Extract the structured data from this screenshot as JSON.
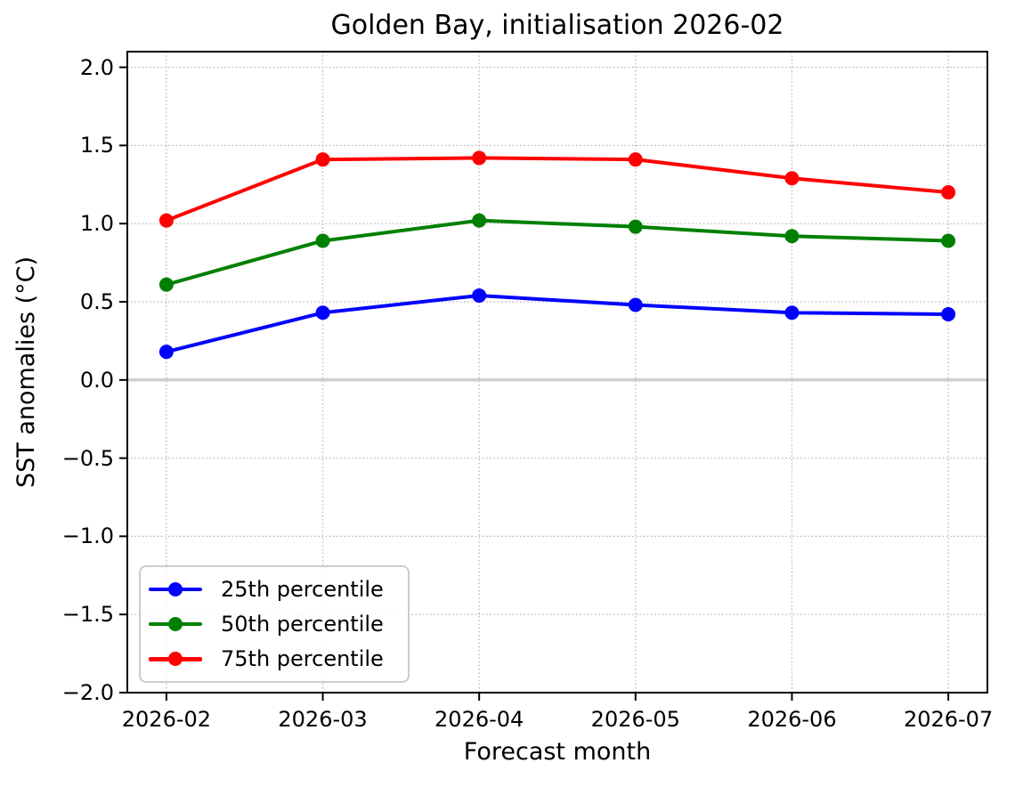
{
  "chart_data": {
    "type": "line",
    "title": "Golden Bay, initialisation 2026-02",
    "xlabel": "Forecast month",
    "ylabel": "SST anomalies (°C)",
    "categories": [
      "2026-02",
      "2026-03",
      "2026-04",
      "2026-05",
      "2026-06",
      "2026-07"
    ],
    "series": [
      {
        "name": "25th percentile",
        "color": "#0000ff",
        "values": [
          0.18,
          0.43,
          0.54,
          0.48,
          0.43,
          0.42
        ]
      },
      {
        "name": "50th percentile",
        "color": "#008000",
        "values": [
          0.61,
          0.89,
          1.02,
          0.98,
          0.92,
          0.89
        ]
      },
      {
        "name": "75th percentile",
        "color": "#ff0000",
        "values": [
          1.02,
          1.41,
          1.42,
          1.41,
          1.29,
          1.2
        ]
      }
    ],
    "ylim": [
      -2.0,
      2.1
    ],
    "x_margin": 0.25,
    "yticks": [
      2.0,
      1.5,
      1.0,
      0.5,
      0.0,
      -0.5,
      -1.0,
      -1.5,
      -2.0
    ],
    "yticklabels": [
      "2.0",
      "1.5",
      "1.0",
      "0.5",
      "0.0",
      "−0.5",
      "−1.0",
      "−1.5",
      "−2.0"
    ],
    "grid": "dotted",
    "grid_color": "#b0b0b0",
    "legend_position": "lower left",
    "zero_line": {
      "y": 0.0,
      "color": "#cfcfcf"
    },
    "marker": "circle",
    "line_width": 4,
    "marker_radius": 8
  }
}
